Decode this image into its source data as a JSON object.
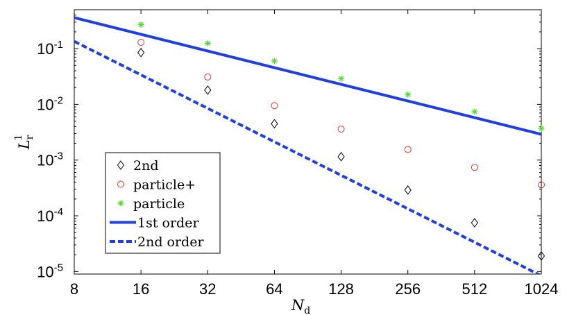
{
  "chart_data": {
    "type": "scatter",
    "title": "",
    "xlabel": "N",
    "xlabel_sub": "d",
    "ylabel": "L",
    "ylabel_sub": "r",
    "ylabel_sup": "1",
    "x_scale": "log2",
    "y_scale": "log10",
    "xlim": [
      8,
      1024
    ],
    "ylim": [
      9e-06,
      0.5
    ],
    "x_ticks": [
      {
        "value": 8,
        "label": "8"
      },
      {
        "value": 16,
        "label": "16"
      },
      {
        "value": 32,
        "label": "32"
      },
      {
        "value": 64,
        "label": "64"
      },
      {
        "value": 128,
        "label": "128"
      },
      {
        "value": 256,
        "label": "256"
      },
      {
        "value": 512,
        "label": "512"
      },
      {
        "value": 1024,
        "label": "1024"
      }
    ],
    "y_ticks": [
      {
        "value": 0.1,
        "base": "10",
        "exp": "-1"
      },
      {
        "value": 0.01,
        "base": "10",
        "exp": "-2"
      },
      {
        "value": 0.001,
        "base": "10",
        "exp": "-3"
      },
      {
        "value": 0.0001,
        "base": "10",
        "exp": "-4"
      },
      {
        "value": 1e-05,
        "base": "10",
        "exp": "-5"
      }
    ],
    "grid": false,
    "legend_position": "lower-left",
    "series": [
      {
        "name": "2nd",
        "kind": "points",
        "marker": "diamond",
        "color": "#000000",
        "x": [
          16,
          32,
          64,
          128,
          256,
          512,
          1024
        ],
        "y": [
          0.085,
          0.018,
          0.0045,
          0.00115,
          0.00029,
          7.5e-05,
          1.9e-05
        ]
      },
      {
        "name": "particle+",
        "kind": "points",
        "marker": "circle",
        "color": "#e8302a",
        "x": [
          16,
          32,
          64,
          128,
          256,
          512,
          1024
        ],
        "y": [
          0.13,
          0.031,
          0.0095,
          0.0036,
          0.00155,
          0.00074,
          0.00036
        ]
      },
      {
        "name": "particle",
        "kind": "points",
        "marker": "asterisk",
        "color": "#44dd22",
        "x": [
          16,
          32,
          64,
          128,
          256,
          512,
          1024
        ],
        "y": [
          0.27,
          0.125,
          0.06,
          0.029,
          0.015,
          0.0074,
          0.0037
        ]
      },
      {
        "name": "1st order",
        "kind": "line",
        "dash": "solid",
        "color": "#1f3fe0",
        "x": [
          8,
          1024
        ],
        "y": [
          0.36,
          0.0029
        ]
      },
      {
        "name": "2nd order",
        "kind": "line",
        "dash": "dashed",
        "color": "#1f3fe0",
        "x": [
          8,
          1024
        ],
        "y": [
          0.135,
          8.4e-06
        ]
      }
    ]
  }
}
